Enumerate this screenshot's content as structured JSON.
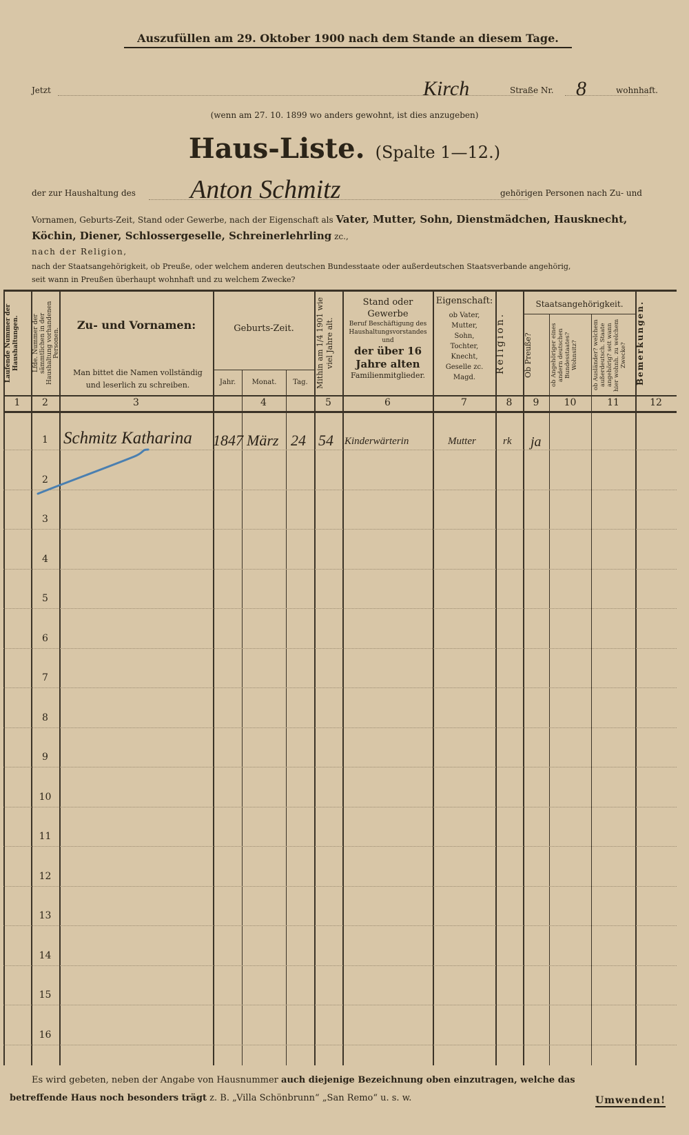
{
  "header": {
    "fill_instruction": "Auszufüllen am 29. Oktober 1900 nach dem Stande an diesem Tage.",
    "jetzt_label": "Jetzt",
    "street_value": "Kirch",
    "street_label": "Straße Nr.",
    "number_value": "8",
    "wohnhaft_label": "wohnhaft.",
    "previous_note": "(wenn am 27. 10. 1899 wo anders gewohnt, ist dies anzugeben)",
    "title": "Haus-Liste.",
    "subtitle": "(Spalte 1—12.)",
    "household_prefix": "der zur Haushaltung des",
    "household_head": "Anton Schmitz",
    "household_suffix": "gehörigen Personen nach Zu- und",
    "instruction_line1_plain": "Vornamen, Geburts-Zeit, Stand oder Gewerbe, nach der Eigenschaft als",
    "instruction_line1_bold": "Vater, Mutter, Sohn, Dienstmädchen, Hausknecht,",
    "instruction_line2_bold": "Köchin, Diener, Schlossergeselle, Schreinerlehrling",
    "instruction_line2_plain": "zc.,",
    "instruction_line3": "nach der Religion,",
    "instruction_line4": "nach der Staatsangehörigkeit, ob Preuße, oder welchem anderen deutschen Bundesstaate oder außerdeutschen Staatsverbande angehörig,",
    "instruction_line5": "seit wann in Preußen überhaupt wohnhaft und zu welchem Zwecke?"
  },
  "table": {
    "headers": {
      "c1": "Laufende Nummer der Haushaltungen.",
      "c2": "Lfde. Nummer der sämmtlichen in der Haushaltung vorhandenen Personen.",
      "c3_title": "Zu- und Vornamen:",
      "c3_note": "Man bittet die Namen vollständig und leserlich zu schreiben.",
      "c4_title": "Geburts-Zeit.",
      "c4_jahr": "Jahr.",
      "c4_monat": "Monat.",
      "c4_tag": "Tag.",
      "c5": "Mithin am 1/4 1901 wie viel Jahre alt.",
      "c6_title": "Stand oder Gewerbe",
      "c6_note": "Beruf Beschäftigung des Haushaltungsvorstandes und",
      "c6_bold": "der über 16 Jahre alten",
      "c6_tail": "Familienmitglieder.",
      "c7_title": "Eigenschaft:",
      "c7_note": "ob Vater, Mutter, Sohn, Tochter, Knecht, Geselle zc. Magd.",
      "c8": "Religion.",
      "staats_title": "Staatsangehörigkeit.",
      "c9": "Ob Preuße?",
      "c10": "ob Angehöriger eines andern deutschen Bundesstaates? Wohnsitz?",
      "c11": "ob Ausländer? welchem außerdeutsch. Staate angehörig? seit wann hier wohnh. zu welchem Zwecke?",
      "c12": "Bemerkungen."
    },
    "column_numbers": [
      "1",
      "2",
      "3",
      "4",
      "5",
      "6",
      "7",
      "8",
      "9",
      "10",
      "11",
      "12"
    ],
    "row_numbers": [
      "1",
      "2",
      "3",
      "4",
      "5",
      "6",
      "7",
      "8",
      "9",
      "10",
      "11",
      "12",
      "13",
      "14",
      "15",
      "16"
    ],
    "entries": [
      {
        "name": "Schmitz Katharina",
        "jahr": "1847",
        "monat": "März",
        "tag": "24",
        "alter": "54",
        "stand": "Kinderwärterin",
        "eigenschaft": "Mutter",
        "religion": "rk",
        "preusse": "ja"
      }
    ]
  },
  "footer": {
    "note_plain1": "Es wird gebeten, neben der Angabe von Hausnummer",
    "note_bold1": "auch diejenige Bezeichnung oben einzutragen, welche das",
    "note_bold2": "betreffende Haus noch besonders trägt",
    "note_plain2": "z. B. „Villa Schönbrunn“ „San Remo“ u. s. w.",
    "turn_over": "Umwenden!"
  },
  "colors": {
    "paper": "#d8c6a7",
    "ink": "#2b2418",
    "blue_pen": "#4a7fb0"
  }
}
